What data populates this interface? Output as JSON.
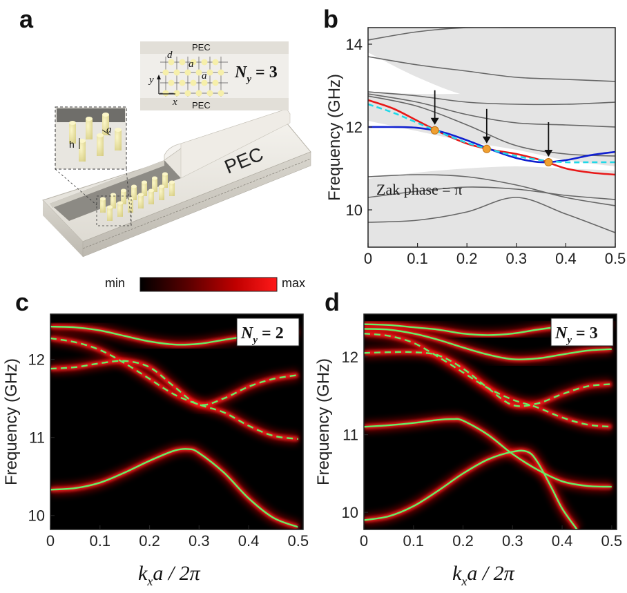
{
  "panels": {
    "a": "a",
    "b": "b",
    "c": "c",
    "d": "d"
  },
  "schematic": {
    "pec_top": "PEC",
    "pec_bottom": "PEC",
    "pec_big": "PEC",
    "ny_prefix": "N",
    "ny_sub": "y",
    "ny_value": " = 3",
    "label_d": "d",
    "label_a1": "a",
    "label_a2": "a",
    "label_a3": "a",
    "label_y": "y",
    "label_x": "x",
    "label_h": "h"
  },
  "colorbar": {
    "min_label": "min",
    "max_label": "max"
  },
  "colors": {
    "red": "#e81818",
    "blue": "#1020d0",
    "cyan": "#20d8e8",
    "gray": "#666666",
    "green": "#66ee66",
    "dot": "#f0a030",
    "band_fill": "#e4e4e4"
  },
  "chart_data": [
    {
      "panel": "b",
      "type": "line",
      "ylabel": "Frequency (GHz)",
      "xlabel": "",
      "xlim": [
        0,
        0.5
      ],
      "ylim": [
        9.1,
        14.4
      ],
      "xticks": [
        "0",
        "0.1",
        "0.2",
        "0.3",
        "0.4",
        "0.5"
      ],
      "yticks": [
        "10",
        "12",
        "14"
      ],
      "annotation": "Zak phase = π",
      "shaded_regions": [
        {
          "x": [
            0,
            0.1,
            0.2,
            0.3,
            0.4,
            0.5
          ],
          "lower": [
            13.8,
            13.2,
            12.75,
            12.55,
            12.45,
            12.4
          ],
          "upper": [
            14.4,
            14.4,
            14.4,
            14.4,
            14.4,
            14.4
          ]
        },
        {
          "x": [
            0,
            0.1,
            0.2,
            0.3,
            0.4,
            0.5
          ],
          "lower": [
            12.15,
            11.9,
            11.65,
            11.45,
            11.2,
            11.05
          ],
          "upper": [
            12.85,
            12.8,
            12.8,
            12.8,
            12.8,
            12.85
          ]
        },
        {
          "x": [
            0,
            0.1,
            0.2,
            0.3,
            0.4,
            0.5
          ],
          "lower": [
            9.1,
            9.1,
            9.1,
            9.1,
            9.1,
            9.1
          ],
          "upper": [
            10.75,
            10.9,
            11.0,
            11.05,
            11.0,
            10.95
          ]
        }
      ],
      "gray_bands": [
        {
          "x": [
            0,
            0.1,
            0.2,
            0.3,
            0.4,
            0.5
          ],
          "y": [
            13.7,
            13.5,
            13.35,
            13.2,
            13.15,
            13.1
          ]
        },
        {
          "x": [
            0,
            0.1,
            0.2,
            0.3,
            0.4,
            0.5
          ],
          "y": [
            14.1,
            14.3,
            14.4,
            14.4,
            14.4,
            14.4
          ]
        },
        {
          "x": [
            0,
            0.1,
            0.2,
            0.3,
            0.4,
            0.5
          ],
          "y": [
            12.85,
            12.75,
            12.6,
            12.55,
            12.55,
            12.6
          ]
        },
        {
          "x": [
            0,
            0.1,
            0.2,
            0.3,
            0.4,
            0.5
          ],
          "y": [
            12.8,
            12.6,
            12.3,
            12.1,
            12.05,
            12.0
          ]
        },
        {
          "x": [
            0,
            0.1,
            0.2,
            0.3,
            0.4,
            0.5
          ],
          "y": [
            12.75,
            12.5,
            12.05,
            11.55,
            11.35,
            11.3
          ]
        },
        {
          "x": [
            0,
            0.1,
            0.2,
            0.3,
            0.4,
            0.5
          ],
          "y": [
            10.8,
            10.85,
            10.8,
            10.6,
            10.3,
            10.1
          ]
        },
        {
          "x": [
            0,
            0.1,
            0.2,
            0.3,
            0.4,
            0.5
          ],
          "y": [
            10.3,
            10.45,
            10.55,
            10.5,
            10.35,
            10.25
          ]
        },
        {
          "x": [
            0,
            0.1,
            0.2,
            0.3,
            0.4,
            0.5
          ],
          "y": [
            9.7,
            9.75,
            9.95,
            10.3,
            9.9,
            9.45
          ]
        }
      ],
      "series": [
        {
          "style": "red-solid",
          "x": [
            0,
            0.05,
            0.1,
            0.15,
            0.2,
            0.25,
            0.3,
            0.35,
            0.4,
            0.45,
            0.5
          ],
          "y": [
            12.65,
            12.45,
            12.15,
            11.85,
            11.6,
            11.45,
            11.35,
            11.2,
            11.0,
            10.9,
            10.85
          ]
        },
        {
          "style": "blue-solid",
          "x": [
            0,
            0.05,
            0.1,
            0.15,
            0.2,
            0.25,
            0.3,
            0.35,
            0.4,
            0.45,
            0.5
          ],
          "y": [
            12.0,
            12.0,
            11.98,
            11.88,
            11.68,
            11.45,
            11.25,
            11.15,
            11.2,
            11.32,
            11.4
          ]
        },
        {
          "style": "cyan-dashed",
          "x": [
            0,
            0.05,
            0.1,
            0.15,
            0.2,
            0.25,
            0.3,
            0.35,
            0.4,
            0.45,
            0.5
          ],
          "y": [
            12.55,
            12.35,
            12.1,
            11.85,
            11.62,
            11.45,
            11.3,
            11.2,
            11.15,
            11.15,
            11.15
          ]
        }
      ],
      "markers": [
        {
          "x": 0.135,
          "y": 11.92
        },
        {
          "x": 0.24,
          "y": 11.47
        },
        {
          "x": 0.365,
          "y": 11.15
        }
      ]
    },
    {
      "panel": "c",
      "type": "heatmap",
      "title": "N_y = 2",
      "title_main": "N",
      "title_sub": "y",
      "title_value": " = 2",
      "xlabel": "k_x a / 2π",
      "ylabel": "Frequency (GHz)",
      "xlim": [
        0,
        0.51
      ],
      "ylim": [
        9.82,
        12.58
      ],
      "xticks": [
        "0",
        "0.1",
        "0.2",
        "0.3",
        "0.4",
        "0.5"
      ],
      "yticks": [
        "10",
        "11",
        "12"
      ],
      "series": [
        {
          "style": "solid",
          "x": [
            0,
            0.05,
            0.1,
            0.15,
            0.2,
            0.25,
            0.3,
            0.35,
            0.4,
            0.45,
            0.5
          ],
          "y": [
            12.42,
            12.41,
            12.37,
            12.3,
            12.23,
            12.19,
            12.2,
            12.25,
            12.3,
            12.34,
            12.35
          ]
        },
        {
          "style": "solid",
          "x": [
            0,
            0.05,
            0.1,
            0.15,
            0.2,
            0.25,
            0.28,
            0.3,
            0.35,
            0.4,
            0.45,
            0.5
          ],
          "y": [
            10.33,
            10.35,
            10.42,
            10.55,
            10.7,
            10.83,
            10.85,
            10.8,
            10.55,
            10.22,
            9.97,
            9.85
          ]
        },
        {
          "style": "dashed",
          "x": [
            0,
            0.05,
            0.1,
            0.15,
            0.2,
            0.25,
            0.3,
            0.35,
            0.4,
            0.45,
            0.5
          ],
          "y": [
            12.27,
            12.22,
            12.12,
            11.95,
            11.75,
            11.55,
            11.42,
            11.32,
            11.15,
            11.02,
            10.98
          ]
        },
        {
          "style": "dashed",
          "x": [
            0,
            0.05,
            0.1,
            0.15,
            0.2,
            0.25,
            0.3,
            0.35,
            0.4,
            0.45,
            0.5
          ],
          "y": [
            11.88,
            11.9,
            11.95,
            11.98,
            11.9,
            11.65,
            11.42,
            11.5,
            11.65,
            11.75,
            11.8
          ]
        }
      ]
    },
    {
      "panel": "d",
      "type": "heatmap",
      "title": "N_y = 3",
      "title_main": "N",
      "title_sub": "y",
      "title_value": " = 3",
      "xlabel": "k_x a / 2π",
      "ylabel": "Frequency (GHz)",
      "xlim": [
        0,
        0.51
      ],
      "ylim": [
        9.78,
        12.55
      ],
      "xticks": [
        "0",
        "0.1",
        "0.2",
        "0.3",
        "0.4",
        "0.5"
      ],
      "yticks": [
        "10",
        "11",
        "12"
      ],
      "series": [
        {
          "style": "solid",
          "x": [
            0,
            0.05,
            0.1,
            0.15,
            0.2,
            0.25,
            0.3,
            0.35,
            0.4,
            0.45,
            0.5
          ],
          "y": [
            12.42,
            12.41,
            12.38,
            12.35,
            12.3,
            12.28,
            12.3,
            12.35,
            12.39,
            12.42,
            12.43
          ]
        },
        {
          "style": "solid",
          "x": [
            0,
            0.05,
            0.1,
            0.15,
            0.2,
            0.25,
            0.3,
            0.35,
            0.4,
            0.45,
            0.5
          ],
          "y": [
            12.36,
            12.35,
            12.3,
            12.22,
            12.12,
            12.03,
            11.97,
            11.98,
            12.03,
            12.08,
            12.1
          ]
        },
        {
          "style": "solid",
          "x": [
            0,
            0.05,
            0.1,
            0.15,
            0.18,
            0.2,
            0.25,
            0.3,
            0.35,
            0.4,
            0.45,
            0.5
          ],
          "y": [
            11.1,
            11.12,
            11.15,
            11.19,
            11.2,
            11.18,
            11.0,
            10.75,
            10.55,
            10.4,
            10.34,
            10.33
          ]
        },
        {
          "style": "solid",
          "x": [
            0,
            0.05,
            0.1,
            0.15,
            0.2,
            0.25,
            0.3,
            0.33,
            0.35,
            0.38,
            0.4,
            0.43
          ],
          "y": [
            9.9,
            9.95,
            10.08,
            10.28,
            10.5,
            10.68,
            10.78,
            10.78,
            10.65,
            10.3,
            10.05,
            9.78
          ]
        },
        {
          "style": "dashed",
          "x": [
            0,
            0.05,
            0.1,
            0.15,
            0.2,
            0.25,
            0.3,
            0.35,
            0.4,
            0.45,
            0.5
          ],
          "y": [
            12.3,
            12.27,
            12.18,
            12.0,
            11.8,
            11.6,
            11.45,
            11.35,
            11.22,
            11.13,
            11.1
          ]
        },
        {
          "style": "dashed",
          "x": [
            0,
            0.05,
            0.1,
            0.15,
            0.2,
            0.25,
            0.3,
            0.35,
            0.4,
            0.45,
            0.5
          ],
          "y": [
            12.05,
            12.06,
            12.06,
            12.02,
            11.85,
            11.6,
            11.38,
            11.4,
            11.52,
            11.62,
            11.65
          ]
        }
      ]
    }
  ]
}
